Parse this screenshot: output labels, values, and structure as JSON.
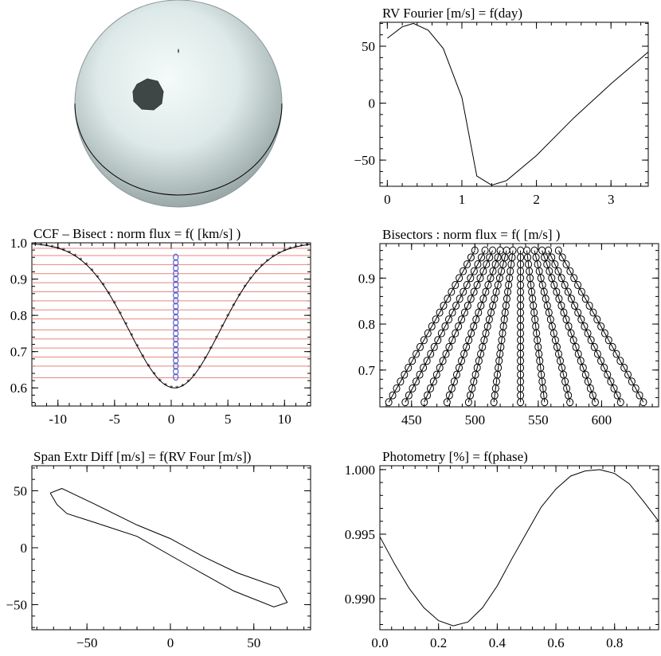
{
  "sphere": {
    "description_label": "Spotted star model",
    "colors": {
      "body": "#d8e6e4",
      "edge": "#7a8a88",
      "spot": "#3f4646",
      "outline": "#000000"
    }
  },
  "chart_data": [
    {
      "id": "rv",
      "type": "line",
      "title": "RV Fourier [m/s] = f(day)",
      "xlim": [
        -0.1,
        3.5
      ],
      "ylim": [
        -73,
        71
      ],
      "xticks": [
        0,
        1,
        2,
        3
      ],
      "xticklabels": [
        "0",
        "1",
        "2",
        "3"
      ],
      "yticks": [
        50,
        0,
        -50
      ],
      "yticklabels": [
        "50",
        "0",
        "−50"
      ],
      "series": [
        {
          "name": "RV",
          "x": [
            0.0,
            0.2,
            0.35,
            0.55,
            0.75,
            1.0,
            1.2,
            1.4,
            1.6,
            2.0,
            2.5,
            3.0,
            3.5
          ],
          "y": [
            57,
            67,
            70,
            64,
            48,
            5,
            -64,
            -72,
            -68,
            -46,
            -13,
            17,
            45
          ]
        }
      ]
    },
    {
      "id": "ccf",
      "type": "line",
      "title": "CCF – Bisect : norm flux = f( [km/s] )",
      "xlim": [
        -12.3,
        12.3
      ],
      "ylim": [
        0.55,
        1.0
      ],
      "xticks": [
        -10,
        -5,
        0,
        5,
        10
      ],
      "xticklabels": [
        "-10",
        "-5",
        "0",
        "5",
        "10"
      ],
      "yticks": [
        1.0,
        0.9,
        0.8,
        0.7,
        0.6
      ],
      "yticklabels": [
        "1.0",
        "0.9",
        "0.8",
        "0.7",
        "0.6"
      ],
      "profile": {
        "depth": 0.4,
        "center": 0.3,
        "sigma": 4.0
      },
      "bisector_x": 0.4,
      "bisector_levels": [
        0.63,
        0.645,
        0.66,
        0.675,
        0.69,
        0.705,
        0.72,
        0.735,
        0.75,
        0.765,
        0.78,
        0.795,
        0.81,
        0.825,
        0.84,
        0.855,
        0.87,
        0.885,
        0.9,
        0.915,
        0.93,
        0.945,
        0.96
      ],
      "red_line_levels": [
        0.628,
        0.66,
        0.685,
        0.71,
        0.735,
        0.76,
        0.79,
        0.815,
        0.84,
        0.865,
        0.89,
        0.915,
        0.94,
        0.965,
        0.985
      ],
      "colors": {
        "profile": "#000000",
        "markers": "#000000",
        "lines": "#e8867c",
        "bisector": "#5560d0"
      }
    },
    {
      "id": "bisectors",
      "type": "scatter",
      "title": "Bisectors : norm flux = f( [m/s] )",
      "xlim": [
        425,
        645
      ],
      "ylim": [
        0.62,
        0.975
      ],
      "xticks": [
        450,
        500,
        550,
        600
      ],
      "xticklabels": [
        "450",
        "500",
        "550",
        "600"
      ],
      "yticks": [
        0.9,
        0.8,
        0.7
      ],
      "yticklabels": [
        "0.9",
        "0.8",
        "0.7"
      ],
      "bottom_x": [
        432,
        445,
        460,
        478,
        495,
        515,
        536,
        555,
        575,
        595,
        615,
        633
      ],
      "top_x": [
        500,
        508,
        514,
        520,
        525,
        530,
        536,
        541,
        547,
        553,
        558,
        566
      ],
      "levels": [
        0.63,
        0.645,
        0.66,
        0.675,
        0.69,
        0.705,
        0.72,
        0.735,
        0.75,
        0.765,
        0.78,
        0.795,
        0.81,
        0.825,
        0.84,
        0.855,
        0.87,
        0.885,
        0.9,
        0.915,
        0.93,
        0.945,
        0.96
      ]
    },
    {
      "id": "span",
      "type": "line",
      "title": "Span Extr Diff [m/s] = f(RV Four [m/s])",
      "xlim": [
        -83,
        84
      ],
      "ylim": [
        -72,
        72
      ],
      "xticks": [
        -50,
        0,
        50
      ],
      "xticklabels": [
        "−50",
        "0",
        "50"
      ],
      "yticks": [
        50,
        0,
        -50
      ],
      "yticklabels": [
        "50",
        "0",
        "−50"
      ],
      "series": [
        {
          "name": "loop",
          "x": [
            -72,
            -65,
            -45,
            -20,
            0,
            20,
            40,
            65,
            70,
            62,
            38,
            10,
            -20,
            -45,
            -62,
            -68,
            -72
          ],
          "y": [
            48,
            52,
            38,
            20,
            8,
            -8,
            -22,
            -35,
            -48,
            -52,
            -38,
            -15,
            10,
            22,
            30,
            38,
            48
          ]
        }
      ]
    },
    {
      "id": "photometry",
      "type": "line",
      "title": "Photometry [%] = f(phase)",
      "xlim": [
        0,
        0.95
      ],
      "ylim": [
        0.9876,
        1.0003
      ],
      "xticks": [
        0.0,
        0.2,
        0.4,
        0.6,
        0.8
      ],
      "xticklabels": [
        "0.0",
        "0.2",
        "0.4",
        "0.6",
        "0.8"
      ],
      "yticks": [
        1.0,
        0.995,
        0.99
      ],
      "yticklabels": [
        "1.000",
        "0.995",
        "0.990"
      ],
      "series": [
        {
          "name": "flux",
          "x": [
            0.0,
            0.05,
            0.1,
            0.15,
            0.2,
            0.25,
            0.3,
            0.35,
            0.4,
            0.45,
            0.5,
            0.55,
            0.6,
            0.65,
            0.7,
            0.75,
            0.8,
            0.85,
            0.9,
            0.95
          ],
          "y": [
            0.9948,
            0.9927,
            0.9908,
            0.9893,
            0.9883,
            0.9879,
            0.9882,
            0.9893,
            0.991,
            0.9931,
            0.9951,
            0.9971,
            0.9985,
            0.9995,
            0.9999,
            1.0,
            0.9997,
            0.9989,
            0.9975,
            0.996
          ]
        }
      ]
    }
  ]
}
